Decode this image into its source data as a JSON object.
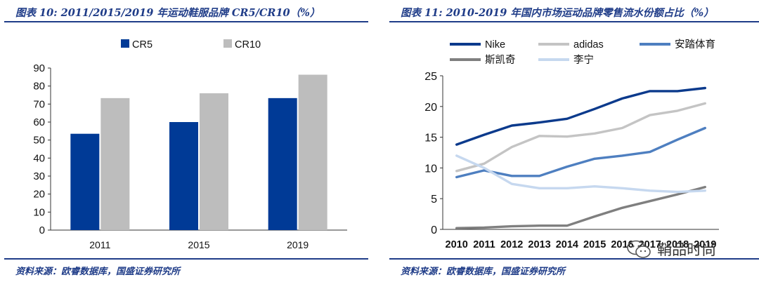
{
  "left": {
    "title": "图表 10:  2011/2015/2019 年运动鞋服品牌 CR5/CR10（%）",
    "source": "资料来源：欧睿数据库，国盛证券研究所"
  },
  "right": {
    "title": "图表 11:  2010-2019 年国内市场运动品牌零售流水份额占比（%）",
    "source": "资料来源：欧睿数据库，国盛证券研究所"
  },
  "watermark": {
    "text": "鞘品时尚",
    "icon": "wechat-icon"
  },
  "colors": {
    "cr5": "#003a96",
    "cr10": "#bdbdbd",
    "nike": "#0b3a8c",
    "adidas": "#c4c4c4",
    "anta": "#4e7fc0",
    "skechers": "#7f7f7f",
    "lining": "#c6d8ef",
    "accent": "#1f3c88"
  },
  "chart_data": [
    {
      "type": "bar",
      "title": "2011/2015/2019 年运动鞋服品牌 CR5/CR10（%）",
      "categories": [
        "2011",
        "2015",
        "2019"
      ],
      "series": [
        {
          "name": "CR5",
          "values": [
            53.5,
            60.0,
            73.3
          ]
        },
        {
          "name": "CR10",
          "values": [
            73.3,
            76.0,
            86.3
          ]
        }
      ],
      "ylim": [
        0,
        90
      ],
      "yticks": [
        "0",
        "10",
        "20",
        "30",
        "40",
        "50",
        "60",
        "70",
        "80",
        "90"
      ],
      "legend_position": "top",
      "grid": false
    },
    {
      "type": "line",
      "title": "2010-2019 年国内市场运动品牌零售流水份额占比（%）",
      "x": [
        "2010",
        "2011",
        "2012",
        "2013",
        "2014",
        "2015",
        "2016",
        "2017",
        "2018",
        "2019"
      ],
      "series": [
        {
          "name": "Nike",
          "values": [
            13.8,
            15.4,
            16.9,
            17.4,
            18.0,
            19.6,
            21.3,
            22.5,
            22.5,
            23.0
          ]
        },
        {
          "name": "adidas",
          "values": [
            9.5,
            10.7,
            13.4,
            15.2,
            15.1,
            15.6,
            16.5,
            18.6,
            19.3,
            20.5
          ]
        },
        {
          "name": "安踏体育",
          "values": [
            8.5,
            9.6,
            8.7,
            8.7,
            10.2,
            11.5,
            12.0,
            12.6,
            14.6,
            16.5
          ]
        },
        {
          "name": "斯凯奇",
          "values": [
            0.2,
            0.3,
            0.5,
            0.6,
            0.6,
            2.1,
            3.5,
            4.6,
            5.7,
            6.9
          ]
        },
        {
          "name": "李宁",
          "values": [
            12.0,
            10.0,
            7.4,
            6.7,
            6.7,
            7.0,
            6.7,
            6.3,
            6.1,
            6.3
          ]
        }
      ],
      "ylim": [
        0,
        25
      ],
      "yticks": [
        "0",
        "5",
        "10",
        "15",
        "20",
        "25"
      ],
      "legend_position": "top",
      "grid": false
    }
  ]
}
